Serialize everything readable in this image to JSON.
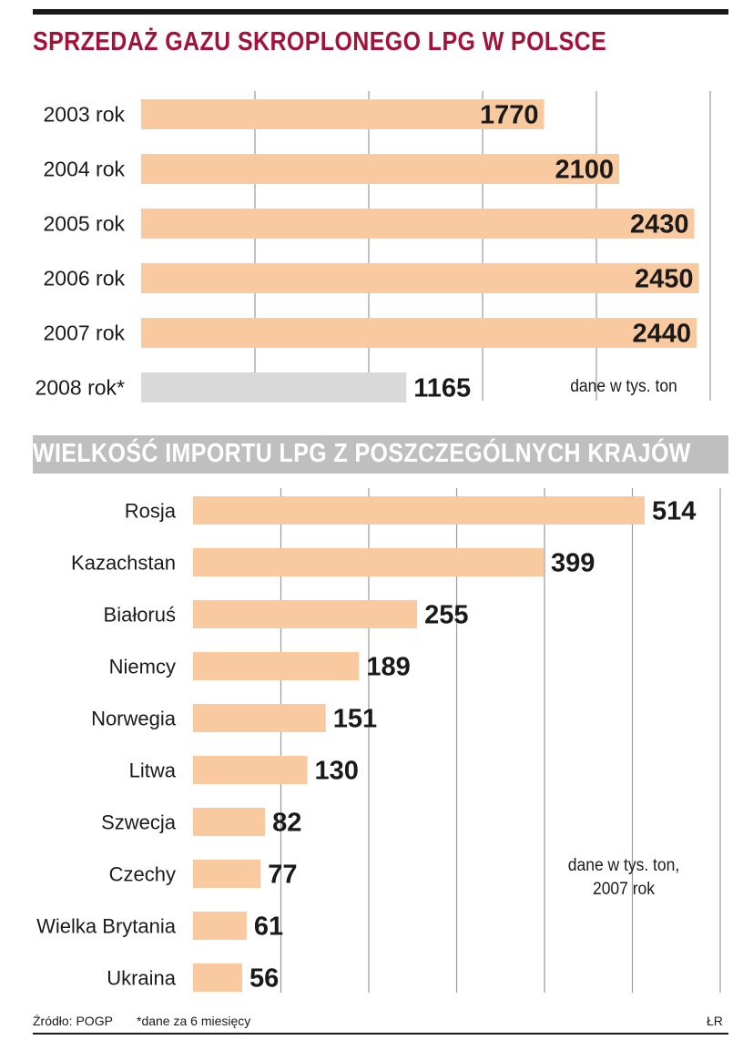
{
  "chart_data": [
    {
      "type": "bar",
      "orientation": "horizontal",
      "title": "SPRZEDAŻ GAZU SKROPLONEGO LPG W POLSCE",
      "categories": [
        "2003 rok",
        "2004 rok",
        "2005 rok",
        "2006 rok",
        "2007 rok",
        "2008 rok*"
      ],
      "values": [
        1770,
        2100,
        2430,
        2450,
        2440,
        1165
      ],
      "value_labels": [
        "1770",
        "2100",
        "2430",
        "2450",
        "2440",
        "1165"
      ],
      "bar_colors": [
        "#f9c9a0",
        "#f9c9a0",
        "#f9c9a0",
        "#f9c9a0",
        "#f9c9a0",
        "#d9d9d9"
      ],
      "unit_note": "dane w tys. ton",
      "xlim": [
        0,
        2500
      ],
      "gridlines": [
        500,
        1000,
        1500,
        2000,
        2500
      ]
    },
    {
      "type": "bar",
      "orientation": "horizontal",
      "title": "WIELKOŚĆ IMPORTU LPG Z POSZCZEGÓLNYCH KRAJÓW",
      "categories": [
        "Rosja",
        "Kazachstan",
        "Białoruś",
        "Niemcy",
        "Norwegia",
        "Litwa",
        "Szwecja",
        "Czechy",
        "Wielka Brytania",
        "Ukraina"
      ],
      "values": [
        514,
        399,
        255,
        189,
        151,
        130,
        82,
        77,
        61,
        56
      ],
      "value_labels": [
        "514",
        "399",
        "255",
        "189",
        "151",
        "130",
        "82",
        "77",
        "61",
        "56"
      ],
      "bar_colors": [
        "#f9c9a0"
      ],
      "unit_note_lines": [
        "dane w tys. ton,",
        "2007 rok"
      ],
      "xlim": [
        0,
        600
      ],
      "gridlines": [
        100,
        200,
        300,
        400,
        500,
        600
      ]
    }
  ],
  "footer": {
    "source": "Źródło: POGP",
    "footnote": "*dane za 6 miesięcy",
    "author": "ŁR"
  },
  "colors": {
    "title_red": "#a3123a",
    "bar_orange": "#f9c9a0",
    "bar_gray": "#d9d9d9",
    "band_gray": "#bfbfbf",
    "text": "#1a1a1a"
  }
}
